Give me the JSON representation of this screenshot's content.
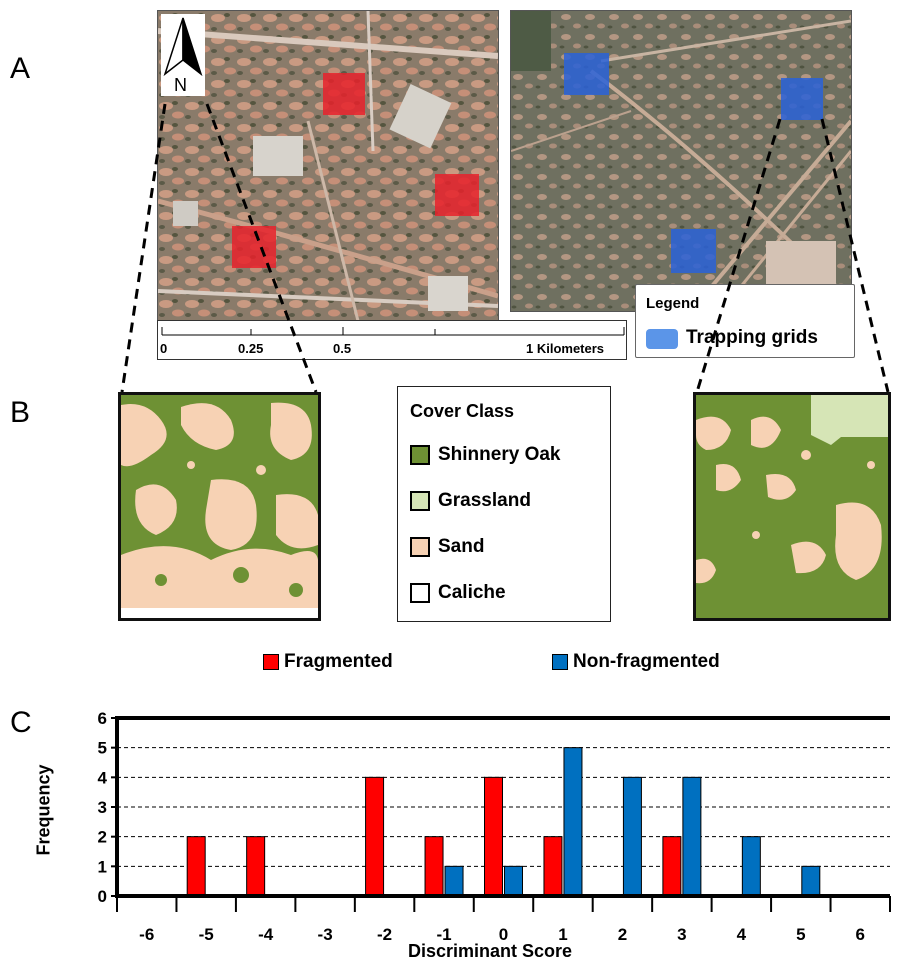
{
  "panels": {
    "a": "A",
    "b": "B",
    "c": "C"
  },
  "north_arrow": {
    "label": "N"
  },
  "scale_bar": {
    "ticks": [
      "0",
      "0.25",
      "0.5",
      "1 Kilometers"
    ]
  },
  "map_legend": {
    "title": "Legend",
    "entry": "Trapping grids",
    "color": "#5b95e8"
  },
  "cover_class": {
    "title": "Cover Class",
    "items": [
      {
        "label": "Shinnery Oak",
        "color": "#6e9134"
      },
      {
        "label": "Grassland",
        "color": "#d6e5b6"
      },
      {
        "label": "Sand",
        "color": "#f7d2b4"
      },
      {
        "label": "Caliche",
        "color": "#ffffff"
      }
    ]
  },
  "colors": {
    "fragmented": "#ff0000",
    "nonfragmented": "#0070c0",
    "grid_fragmented": "#e8222b",
    "grid_nonfragmented": "#2a62d8"
  },
  "chart_data": {
    "type": "bar",
    "xlabel": "Discriminant Score",
    "ylabel": "Frequency",
    "categories": [
      "-6",
      "-5",
      "-4",
      "-3",
      "-2",
      "-1",
      "0",
      "1",
      "2",
      "3",
      "4",
      "5",
      "6"
    ],
    "ylim": [
      0,
      6
    ],
    "yticks": [
      "0",
      "1",
      "2",
      "3",
      "4",
      "5",
      "6"
    ],
    "grid": "horizontal dashed",
    "legend_placement": "top",
    "series": [
      {
        "name": "Fragmented",
        "values": [
          0,
          2,
          2,
          0,
          4,
          2,
          4,
          2,
          0,
          2,
          0,
          0,
          0
        ]
      },
      {
        "name": "Non-fragmented",
        "values": [
          0,
          0,
          0,
          0,
          0,
          1,
          1,
          5,
          4,
          4,
          2,
          1,
          0
        ]
      }
    ]
  }
}
